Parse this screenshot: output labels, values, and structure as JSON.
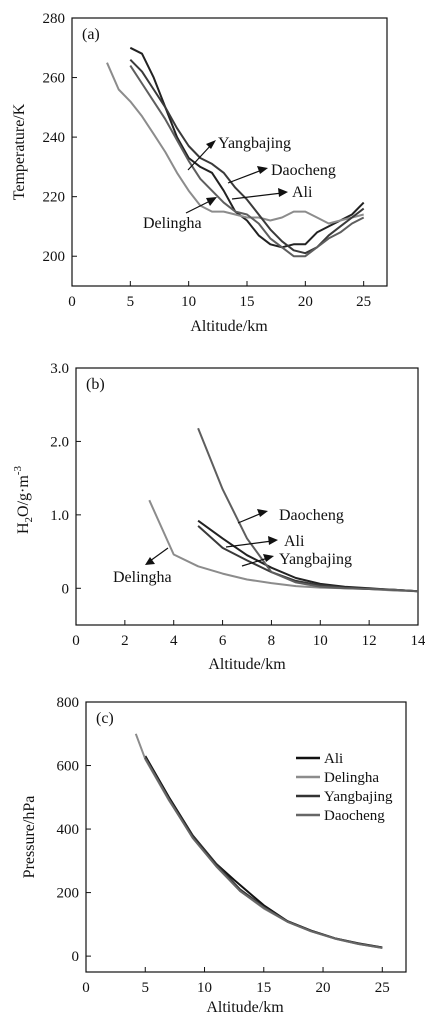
{
  "chart_data": [
    {
      "type": "line",
      "panel_label": "(a)",
      "xlabel": "Altitude/km",
      "ylabel": "Temperature/K",
      "xlim": [
        0,
        27
      ],
      "ylim": [
        190,
        280
      ],
      "xticks": [
        0,
        5,
        10,
        15,
        20,
        25
      ],
      "yticks": [
        200,
        220,
        240,
        260,
        280
      ],
      "grid": false,
      "series": [
        {
          "name": "Ali",
          "color": "#222222",
          "x": [
            5,
            6,
            7,
            8,
            9,
            10,
            11,
            12,
            13,
            14,
            15,
            16,
            17,
            18,
            19,
            20,
            21,
            22,
            23,
            24,
            25
          ],
          "y": [
            270,
            268,
            260,
            250,
            240,
            233,
            230,
            228,
            222,
            215,
            212,
            207,
            204,
            203,
            204,
            204,
            208,
            210,
            212,
            214,
            218
          ]
        },
        {
          "name": "Delingha",
          "color": "#8c8c8c",
          "x": [
            3,
            4,
            5,
            6,
            7,
            8,
            9,
            10,
            11,
            12,
            13,
            14,
            15,
            16,
            17,
            18,
            19,
            20,
            21,
            22,
            23,
            24,
            25
          ],
          "y": [
            265,
            256,
            252,
            247,
            241,
            235,
            228,
            222,
            217,
            215,
            215,
            214,
            213,
            213,
            212,
            213,
            215,
            215,
            213,
            211,
            212,
            213,
            214
          ]
        },
        {
          "name": "Yangbajing",
          "color": "#3a3a3a",
          "x": [
            5,
            6,
            7,
            8,
            9,
            10,
            11,
            12,
            13,
            14,
            15,
            16,
            17,
            18,
            19,
            20,
            21,
            22,
            23,
            24,
            25
          ],
          "y": [
            266,
            262,
            256,
            250,
            243,
            237,
            233,
            231,
            228,
            223,
            219,
            214,
            209,
            205,
            202,
            201,
            203,
            207,
            210,
            213,
            216
          ]
        },
        {
          "name": "Daocheng",
          "color": "#5e5e5e",
          "x": [
            5,
            6,
            7,
            8,
            9,
            10,
            11,
            12,
            13,
            14,
            15,
            16,
            17,
            18,
            19,
            20,
            21,
            22,
            23,
            24,
            25
          ],
          "y": [
            264,
            258,
            252,
            246,
            239,
            232,
            226,
            222,
            218,
            215,
            214,
            211,
            206,
            203,
            200,
            200,
            203,
            206,
            208,
            211,
            213
          ]
        }
      ],
      "annotations": [
        "Yangbajing",
        "Daocheng",
        "Ali",
        "Delingha"
      ]
    },
    {
      "type": "line",
      "panel_label": "(b)",
      "xlabel": "Altitude/km",
      "ylabel": "H2O/g·m-3",
      "xlim": [
        0,
        14
      ],
      "ylim": [
        -0.5,
        3.0
      ],
      "xticks": [
        0,
        2,
        4,
        6,
        8,
        10,
        12,
        14
      ],
      "yticks": [
        0,
        1.0,
        2.0,
        3.0
      ],
      "grid": false,
      "series": [
        {
          "name": "Ali",
          "color": "#222222",
          "x": [
            5,
            6,
            7,
            8,
            9,
            10,
            11,
            12,
            13,
            14
          ],
          "y": [
            0.92,
            0.68,
            0.45,
            0.28,
            0.14,
            0.06,
            0.02,
            0.0,
            -0.02,
            -0.04
          ]
        },
        {
          "name": "Delingha",
          "color": "#8c8c8c",
          "x": [
            3,
            4,
            5,
            6,
            7,
            8,
            9,
            10,
            11,
            12,
            13,
            14
          ],
          "y": [
            1.2,
            0.46,
            0.3,
            0.2,
            0.12,
            0.07,
            0.03,
            0.01,
            0.0,
            -0.01,
            -0.03,
            -0.04
          ]
        },
        {
          "name": "Yangbajing",
          "color": "#3a3a3a",
          "x": [
            5,
            6,
            7,
            8,
            9,
            10,
            11,
            12,
            13,
            14
          ],
          "y": [
            0.85,
            0.55,
            0.38,
            0.22,
            0.1,
            0.04,
            0.01,
            -0.01,
            -0.02,
            -0.04
          ]
        },
        {
          "name": "Daocheng",
          "color": "#5e5e5e",
          "x": [
            5,
            6,
            7,
            8,
            9,
            10,
            11,
            12,
            13,
            14
          ],
          "y": [
            2.18,
            1.35,
            0.68,
            0.22,
            0.08,
            0.02,
            0.0,
            -0.01,
            -0.02,
            -0.04
          ]
        }
      ],
      "annotations": [
        "Daocheng",
        "Ali",
        "Yangbajing",
        "Delingha"
      ]
    },
    {
      "type": "line",
      "panel_label": "(c)",
      "xlabel": "Altitude/km",
      "ylabel": "Pressure/hPa",
      "xlim": [
        0,
        27
      ],
      "ylim": [
        -50,
        800
      ],
      "xticks": [
        0,
        5,
        10,
        15,
        20,
        25
      ],
      "yticks": [
        0,
        200,
        400,
        600,
        800
      ],
      "grid": false,
      "legend": "top-right",
      "series": [
        {
          "name": "Ali",
          "color": "#111111",
          "x": [
            5,
            7,
            9,
            11,
            12.5,
            15,
            17,
            19,
            21,
            23,
            25
          ],
          "y": [
            630,
            500,
            380,
            290,
            240,
            160,
            110,
            80,
            56,
            40,
            27
          ]
        },
        {
          "name": "Delingha",
          "color": "#8c8c8c",
          "x": [
            4.2,
            5,
            7,
            9,
            11,
            13,
            15,
            17,
            19,
            21,
            23,
            25
          ],
          "y": [
            700,
            620,
            490,
            375,
            285,
            205,
            150,
            108,
            78,
            55,
            38,
            26
          ]
        },
        {
          "name": "Yangbajing",
          "color": "#333333",
          "x": [
            5,
            7,
            9,
            11,
            13,
            15,
            17,
            19,
            21,
            23,
            25
          ],
          "y": [
            625,
            495,
            378,
            288,
            210,
            155,
            110,
            80,
            56,
            39,
            27
          ]
        },
        {
          "name": "Daocheng",
          "color": "#666666",
          "x": [
            5,
            7,
            9,
            11,
            13,
            15,
            17,
            19,
            21,
            23,
            25
          ],
          "y": [
            622,
            492,
            372,
            282,
            205,
            152,
            108,
            78,
            55,
            38,
            26
          ]
        }
      ]
    }
  ]
}
